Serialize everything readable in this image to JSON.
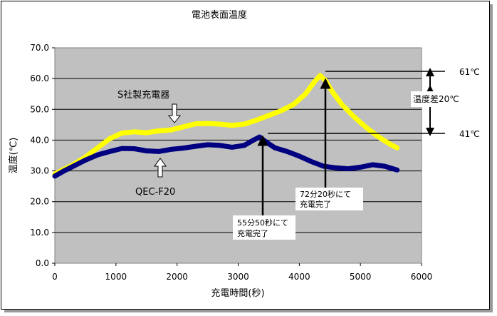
{
  "chart_data": {
    "type": "line",
    "title": "電池表面温度",
    "xlabel": "充電時間(秒)",
    "ylabel": "温度(℃)",
    "xlim": [
      0,
      6000
    ],
    "ylim": [
      0,
      70
    ],
    "xticks": [
      0,
      1000,
      2000,
      3000,
      4000,
      5000,
      6000
    ],
    "yticks": [
      "0.0",
      "10.0",
      "20.0",
      "30.0",
      "40.0",
      "50.0",
      "60.0",
      "70.0"
    ],
    "grid": "horizontal",
    "plot_background": "#c0c0c0",
    "series": [
      {
        "name": "S社製充電器",
        "color": "#ffff00",
        "points": [
          [
            0,
            29
          ],
          [
            150,
            30.5
          ],
          [
            300,
            32
          ],
          [
            500,
            34.5
          ],
          [
            700,
            37.5
          ],
          [
            900,
            40.5
          ],
          [
            1100,
            42.3
          ],
          [
            1300,
            42.7
          ],
          [
            1500,
            42.4
          ],
          [
            1700,
            43
          ],
          [
            1900,
            43.3
          ],
          [
            2100,
            44.3
          ],
          [
            2300,
            45.3
          ],
          [
            2500,
            45.4
          ],
          [
            2700,
            45.2
          ],
          [
            2900,
            44.8
          ],
          [
            3100,
            45.2
          ],
          [
            3300,
            46.5
          ],
          [
            3500,
            48
          ],
          [
            3700,
            49.5
          ],
          [
            3900,
            51.5
          ],
          [
            4100,
            55
          ],
          [
            4250,
            59
          ],
          [
            4340,
            61
          ],
          [
            4420,
            59.5
          ],
          [
            4550,
            55.5
          ],
          [
            4700,
            51.5
          ],
          [
            4900,
            47.5
          ],
          [
            5100,
            44
          ],
          [
            5300,
            41
          ],
          [
            5500,
            38.5
          ],
          [
            5600,
            37.5
          ]
        ]
      },
      {
        "name": "QEC-F20",
        "color": "#000080",
        "points": [
          [
            0,
            28.3
          ],
          [
            150,
            30
          ],
          [
            300,
            31.5
          ],
          [
            500,
            33.5
          ],
          [
            700,
            35.2
          ],
          [
            900,
            36.3
          ],
          [
            1100,
            37.3
          ],
          [
            1300,
            37.2
          ],
          [
            1500,
            36.5
          ],
          [
            1700,
            36.3
          ],
          [
            1900,
            37
          ],
          [
            2100,
            37.4
          ],
          [
            2300,
            38
          ],
          [
            2500,
            38.5
          ],
          [
            2700,
            38.3
          ],
          [
            2900,
            37.7
          ],
          [
            3100,
            38.3
          ],
          [
            3250,
            40
          ],
          [
            3350,
            41
          ],
          [
            3450,
            39.5
          ],
          [
            3600,
            37.5
          ],
          [
            3800,
            36.3
          ],
          [
            4000,
            34.8
          ],
          [
            4200,
            33
          ],
          [
            4400,
            31.5
          ],
          [
            4600,
            31
          ],
          [
            4800,
            30.7
          ],
          [
            5000,
            31.2
          ],
          [
            5200,
            32
          ],
          [
            5400,
            31.5
          ],
          [
            5600,
            30.3
          ]
        ]
      }
    ],
    "annotations": {
      "s_label": "S社製充電器",
      "q_label": "QEC-F20",
      "done_q": [
        "55分50秒にて",
        "充電完了"
      ],
      "done_s": [
        "72分20秒にて",
        "充電完了"
      ],
      "peak_s": "61℃",
      "peak_q": "41℃",
      "diff": "温度差20℃"
    }
  }
}
